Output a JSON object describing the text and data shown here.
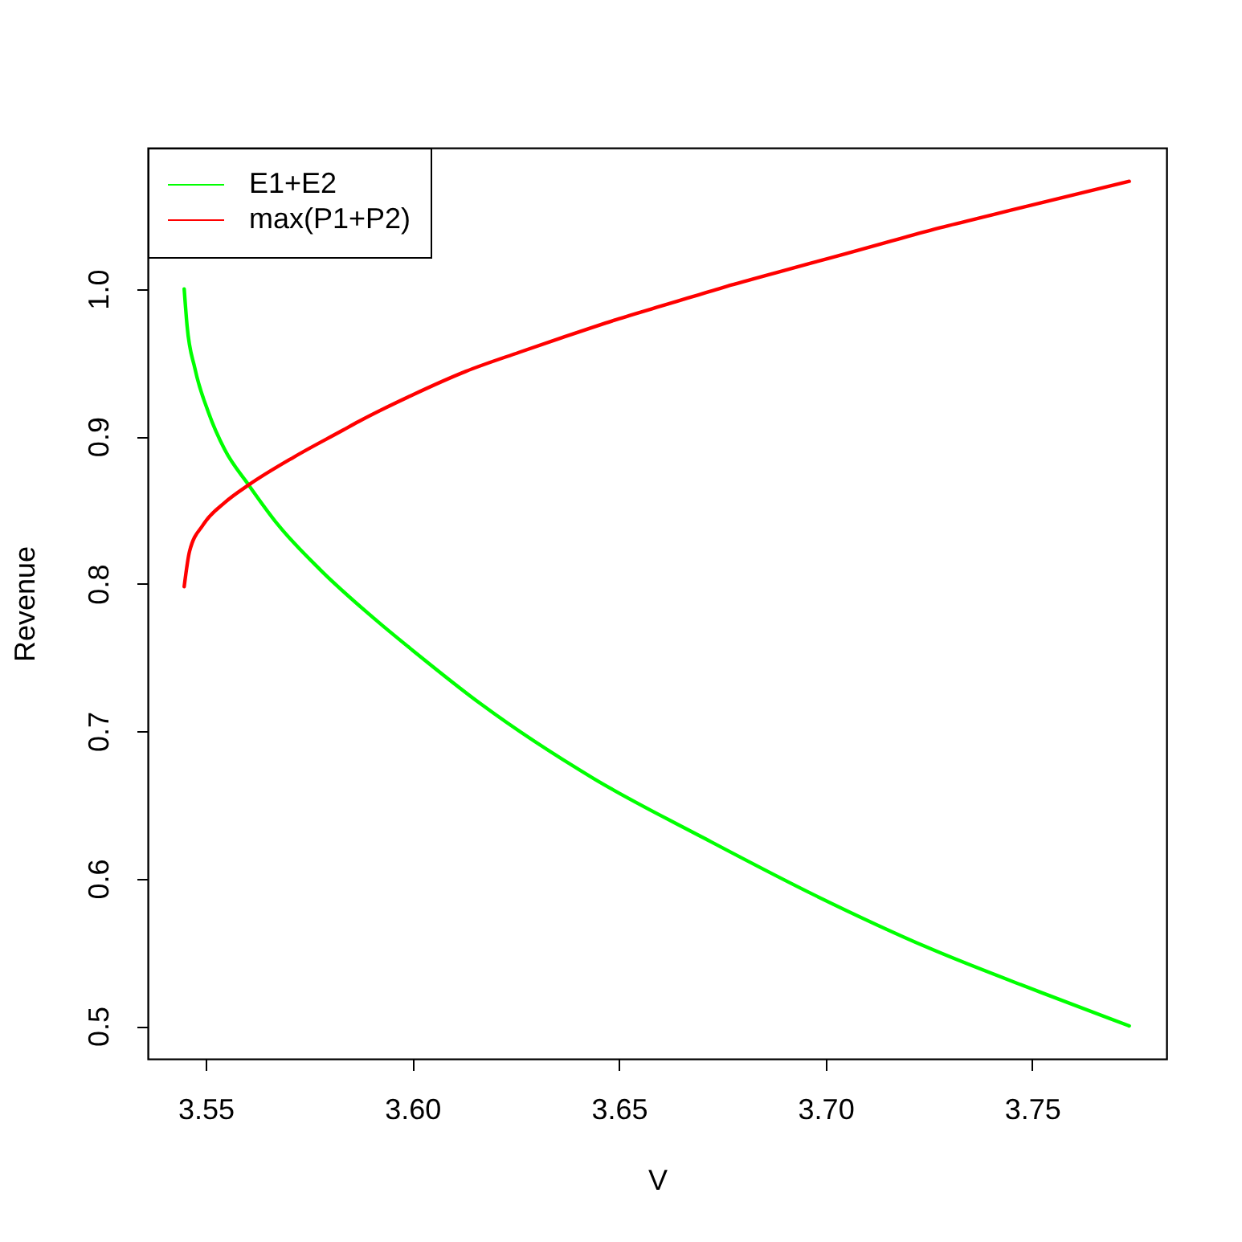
{
  "chart_data": {
    "type": "line",
    "xlabel": "V",
    "ylabel": "Revenue",
    "xlim": [
      3.536,
      3.7825
    ],
    "ylim": [
      0.4777,
      1.0957
    ],
    "xticks": [
      {
        "value": 3.55,
        "label": "3.55"
      },
      {
        "value": 3.6,
        "label": "3.60"
      },
      {
        "value": 3.65,
        "label": "3.65"
      },
      {
        "value": 3.7,
        "label": "3.70"
      },
      {
        "value": 3.75,
        "label": "3.75"
      }
    ],
    "yticks": [
      0.5,
      0.6,
      0.7,
      0.8,
      0.9,
      {
        "value": 1.0,
        "label": "1.0"
      }
    ],
    "legend": "top left",
    "series": [
      {
        "name": "E1+E2",
        "color": "#00ff00",
        "x": [
          3.5448,
          3.5455,
          3.5474,
          3.5507,
          3.5546,
          3.5604,
          3.5675,
          3.5779,
          3.5922,
          3.6,
          3.6168,
          3.6438,
          3.6709,
          3.6979,
          3.7249,
          3.7519,
          3.7735
        ],
        "values": [
          1.0,
          0.975,
          0.946,
          0.916,
          0.891,
          0.867,
          0.84,
          0.809,
          0.773,
          0.755,
          0.718,
          0.668,
          0.627,
          0.588,
          0.553,
          0.523,
          0.5
        ]
      },
      {
        "name": "max(P1+P2)",
        "color": "#ff0000",
        "x": [
          3.5448,
          3.5461,
          3.5494,
          3.5546,
          3.5604,
          3.5714,
          3.5831,
          3.587,
          3.6,
          3.6129,
          3.6259,
          3.6363,
          3.6492,
          3.6622,
          3.6752,
          3.6881,
          3.7011,
          3.7141,
          3.727,
          3.74,
          3.753,
          3.7735
        ],
        "values": [
          0.798,
          0.822,
          0.84,
          0.855,
          0.867,
          0.886,
          0.904,
          0.91,
          0.928,
          0.944,
          0.957,
          0.967,
          0.979,
          0.99,
          1.001,
          1.011,
          1.021,
          1.031,
          1.041,
          1.05,
          1.059,
          1.073
        ]
      }
    ]
  }
}
